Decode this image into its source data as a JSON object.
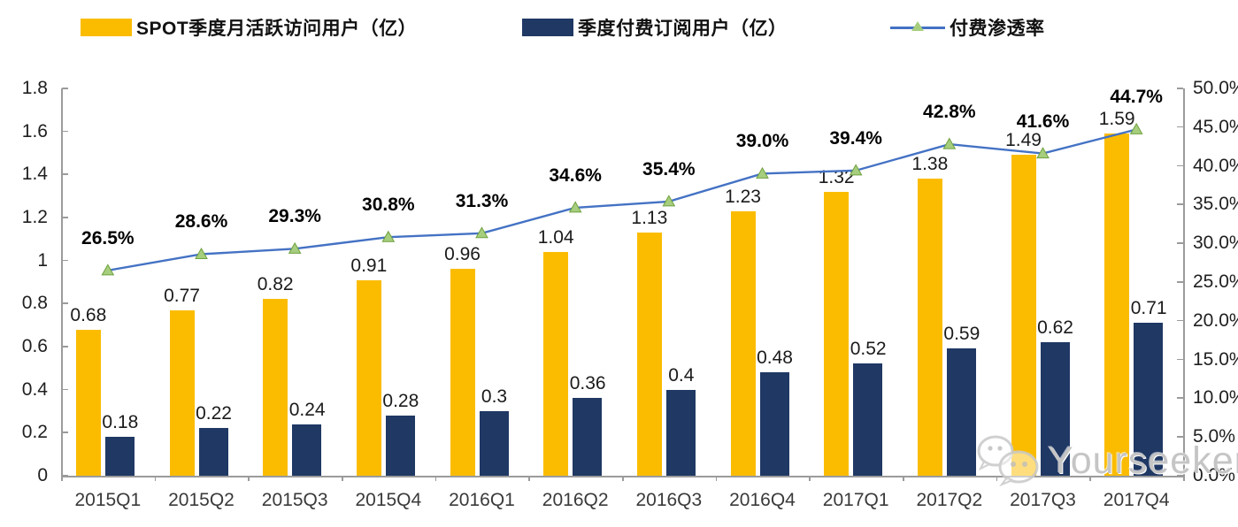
{
  "legend": {
    "items": [
      {
        "label": "SPOT季度月活跃访问用户（亿）",
        "color": "#FBBC00",
        "marker": "bar"
      },
      {
        "label": "季度付费订阅用户（亿）",
        "color": "#1F3864",
        "marker": "bar"
      },
      {
        "label": "付费渗透率",
        "color": "#4472C4",
        "marker": "line",
        "marker_fill": "#A6CE7E"
      }
    ]
  },
  "watermark": {
    "text": "Yourseeker",
    "icon": "wechat-icon"
  },
  "chart_data": {
    "type": "combo-bar-line",
    "categories": [
      "2015Q1",
      "2015Q2",
      "2015Q3",
      "2015Q4",
      "2016Q1",
      "2016Q2",
      "2016Q3",
      "2016Q4",
      "2017Q1",
      "2017Q2",
      "2017Q3",
      "2017Q4"
    ],
    "series": [
      {
        "name": "SPOT季度月活跃访问用户（亿）",
        "type": "bar",
        "axis": "left",
        "color": "#FBBC00",
        "values": [
          0.68,
          0.77,
          0.82,
          0.91,
          0.96,
          1.04,
          1.13,
          1.23,
          1.32,
          1.38,
          1.49,
          1.59
        ],
        "labels": [
          "0.68",
          "0.77",
          "0.82",
          "0.91",
          "0.96",
          "1.04",
          "1.13",
          "1.23",
          "1.32",
          "1.38",
          "1.49",
          "1.59"
        ]
      },
      {
        "name": "季度付费订阅用户（亿）",
        "type": "bar",
        "axis": "left",
        "color": "#1F3864",
        "values": [
          0.18,
          0.22,
          0.24,
          0.28,
          0.3,
          0.36,
          0.4,
          0.48,
          0.52,
          0.59,
          0.62,
          0.71
        ],
        "labels": [
          "0.18",
          "0.22",
          "0.24",
          "0.28",
          "0.3",
          "0.36",
          "0.4",
          "0.48",
          "0.52",
          "0.59",
          "0.62",
          "0.71"
        ]
      },
      {
        "name": "付费渗透率",
        "type": "line",
        "axis": "right",
        "color": "#4472C4",
        "marker": "triangle",
        "marker_fill": "#A6CE7E",
        "marker_stroke": "#6FA13F",
        "values": [
          26.5,
          28.6,
          29.3,
          30.8,
          31.3,
          34.6,
          35.4,
          39.0,
          39.4,
          42.8,
          41.6,
          44.7
        ],
        "labels": [
          "26.5%",
          "28.6%",
          "29.3%",
          "30.8%",
          "31.3%",
          "34.6%",
          "35.4%",
          "39.0%",
          "39.4%",
          "42.8%",
          "41.6%",
          "44.7%"
        ]
      }
    ],
    "left_axis": {
      "min": 0,
      "max": 1.8,
      "step": 0.2,
      "tick_labels": [
        "0",
        "0.2",
        "0.4",
        "0.6",
        "0.8",
        "1",
        "1.2",
        "1.4",
        "1.6",
        "1.8"
      ]
    },
    "right_axis": {
      "min": 0,
      "max": 50,
      "step": 5,
      "tick_labels": [
        "0.0%",
        "5.0%",
        "10.0%",
        "15.0%",
        "20.0%",
        "25.0%",
        "30.0%",
        "35.0%",
        "40.0%",
        "45.0%",
        "50.0%"
      ]
    },
    "grid": false,
    "legend_position": "top",
    "title": ""
  }
}
